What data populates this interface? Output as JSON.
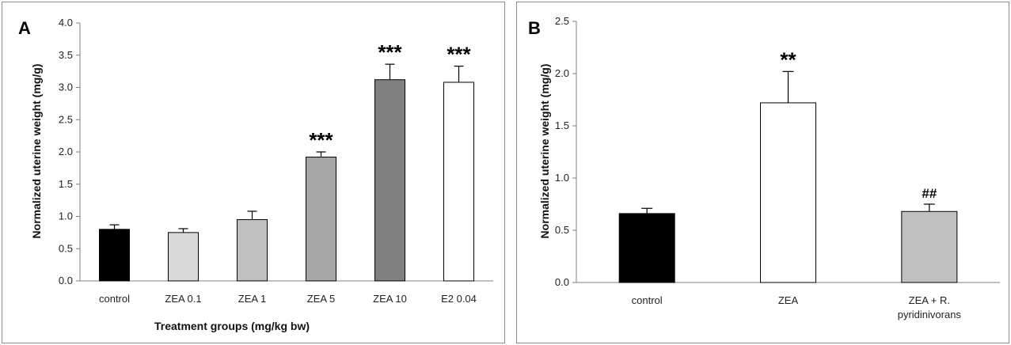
{
  "chart_data": [
    {
      "type": "bar",
      "panel_label": "A",
      "ylabel": "Normalized uterine weight (mg/g)",
      "xlabel": "Treatment groups (mg/kg bw)",
      "categories": [
        "control",
        "ZEA 0.1",
        "ZEA 1",
        "ZEA 5",
        "ZEA 10",
        "E2 0.04"
      ],
      "values": [
        0.8,
        0.75,
        0.95,
        1.92,
        3.12,
        3.08
      ],
      "errors": [
        0.07,
        0.06,
        0.13,
        0.08,
        0.24,
        0.25
      ],
      "significance": [
        "",
        "",
        "",
        "***",
        "***",
        "***"
      ],
      "colors": [
        "#000000",
        "#d9d9d9",
        "#c0c0c0",
        "#a6a6a6",
        "#808080",
        "#ffffff"
      ],
      "ylim": [
        0,
        4
      ],
      "yticks": [
        "0.0",
        "0.5",
        "1.0",
        "1.5",
        "2.0",
        "2.5",
        "3.0",
        "3.5",
        "4.0"
      ],
      "grid": false
    },
    {
      "type": "bar",
      "panel_label": "B",
      "ylabel": "Normalized uterine weight (mg/g)",
      "xlabel": "",
      "categories": [
        "control",
        "ZEA",
        "ZEA + R. pyridinivorans"
      ],
      "category_lines": [
        [
          "control"
        ],
        [
          "ZEA"
        ],
        [
          "ZEA + R.",
          "pyridinivorans"
        ]
      ],
      "values": [
        0.66,
        1.72,
        0.68
      ],
      "errors": [
        0.05,
        0.3,
        0.07
      ],
      "significance": [
        "",
        "**",
        "##"
      ],
      "colors": [
        "#000000",
        "#ffffff",
        "#c0c0c0"
      ],
      "ylim": [
        0,
        2.5
      ],
      "yticks": [
        "0.0",
        "0.5",
        "1.0",
        "1.5",
        "2.0",
        "2.5"
      ],
      "grid": false
    }
  ]
}
